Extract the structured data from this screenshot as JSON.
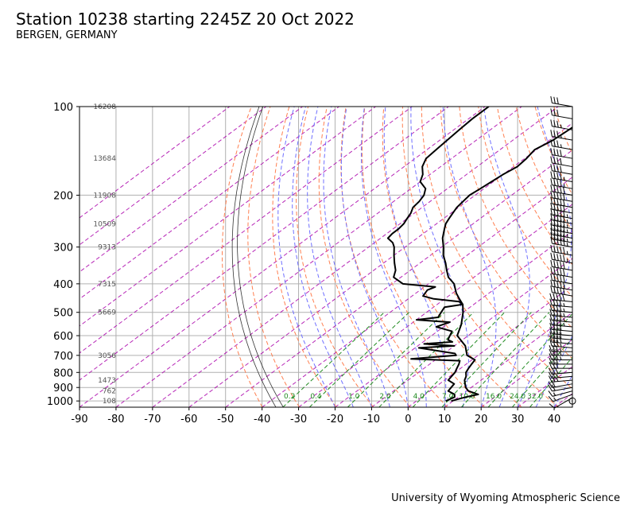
{
  "header": {
    "title": "Station 10238 starting 2245Z 20 Oct 2022",
    "subtitle": "BERGEN, GERMANY"
  },
  "footer": {
    "credit": "University of Wyoming Atmospheric Science"
  },
  "colors": {
    "dry_adiabats": "#ff7f50",
    "moist_adiabats": "#6f6fff",
    "mixing_ratio": "#228b22",
    "isotherms": "#aa00aa",
    "profile": "#000000",
    "grid": "#b0b0b0",
    "height_labels": "#555555"
  },
  "chart_data": {
    "type": "line",
    "chart_kind": "skew-T log-p diagram",
    "xlabel": "",
    "ylabel": "",
    "xlim": [
      -90,
      45
    ],
    "ylim": [
      1050,
      100
    ],
    "yscale": "log",
    "grid": true,
    "x_ticks": [
      -90,
      -80,
      -70,
      -60,
      -50,
      -40,
      -30,
      -20,
      -10,
      0,
      10,
      20,
      30,
      40
    ],
    "y_ticks": [
      100,
      200,
      300,
      400,
      500,
      600,
      700,
      800,
      900,
      1000
    ],
    "height_labels": [
      {
        "p": 100,
        "h": "16208"
      },
      {
        "p": 150,
        "h": "13684"
      },
      {
        "p": 200,
        "h": "11908"
      },
      {
        "p": 250,
        "h": "10509"
      },
      {
        "p": 300,
        "h": "9313"
      },
      {
        "p": 400,
        "h": "7315"
      },
      {
        "p": 500,
        "h": "5669"
      },
      {
        "p": 700,
        "h": "3056"
      },
      {
        "p": 850,
        "h": "1473"
      },
      {
        "p": 925,
        "h": "762"
      },
      {
        "p": 1000,
        "h": "108"
      }
    ],
    "mixing_ratio_labels": [
      "0.2",
      "0.4",
      "1.0",
      "2.0",
      "4.0",
      "7.0",
      "10.0",
      "16.0",
      "24.0",
      "32.0"
    ],
    "mixing_ratio_values": [
      0.2,
      0.4,
      1.0,
      2.0,
      4.0,
      7.0,
      10.0,
      16.0,
      24.0,
      32.0
    ],
    "series": [
      {
        "variable": "temperature",
        "p": [
          1000,
          970,
          950,
          925,
          900,
          875,
          850,
          825,
          800,
          775,
          750,
          725,
          700,
          650,
          600,
          550,
          500,
          470,
          450,
          430,
          400,
          380,
          360,
          340,
          320,
          300,
          280,
          260,
          250,
          240,
          230,
          220,
          210,
          200,
          190,
          180,
          170,
          160,
          150,
          140,
          130,
          120,
          110,
          100
        ],
        "t": [
          9.5,
          12.0,
          14.5,
          10.5,
          8.5,
          7.0,
          5.5,
          4.5,
          3.0,
          2.2,
          1.5,
          0.8,
          -3.0,
          -7.0,
          -13.0,
          -16.0,
          -20.0,
          -23.0,
          -26.0,
          -29.0,
          -33.0,
          -37.0,
          -40.0,
          -43.0,
          -46.5,
          -49.5,
          -53.0,
          -56.0,
          -57.5,
          -58.5,
          -59.5,
          -60.5,
          -61.0,
          -61.5,
          -61.0,
          -60.5,
          -60.0,
          -59.0,
          -59.5,
          -60.5,
          -59.0,
          -58.5,
          -58.0,
          -58.0
        ]
      },
      {
        "variable": "dewpoint",
        "p": [
          1000,
          970,
          950,
          925,
          900,
          875,
          850,
          825,
          800,
          775,
          750,
          730,
          720,
          700,
          690,
          660,
          650,
          640,
          630,
          620,
          600,
          580,
          560,
          540,
          530,
          520,
          500,
          480,
          470,
          460,
          450,
          440,
          420,
          410,
          400,
          380,
          360,
          340,
          320,
          300,
          290,
          280,
          270,
          260,
          250,
          240,
          230,
          220,
          210,
          200,
          190,
          180,
          170,
          160,
          150,
          140,
          130,
          120,
          110,
          100
        ],
        "t": [
          8.0,
          9.0,
          8.0,
          5.0,
          4.5,
          4.0,
          1.0,
          0.5,
          0.0,
          -1.0,
          -2.0,
          -3.0,
          -17.0,
          -6.0,
          -7.0,
          -19.0,
          -10.0,
          -19.0,
          -12.0,
          -14.0,
          -15.0,
          -16.0,
          -22.0,
          -20.0,
          -30.0,
          -25.0,
          -26.0,
          -27.0,
          -23.0,
          -25.0,
          -33.0,
          -37.0,
          -38.0,
          -37.0,
          -47.0,
          -52.0,
          -54.0,
          -57.0,
          -60.0,
          -63.0,
          -65.0,
          -68.0,
          -68.5,
          -68.5,
          -69.0,
          -70.0,
          -71.0,
          -72.5,
          -73.0,
          -74.0,
          -76.0,
          -80.0,
          -82.0,
          -85.0,
          -87.0,
          -87.5,
          -88.0,
          -88.5,
          -89.0,
          -89.0
        ]
      }
    ],
    "wind_barbs": {
      "p": [
        1000,
        975,
        950,
        925,
        900,
        875,
        850,
        825,
        800,
        775,
        750,
        725,
        700,
        680,
        660,
        640,
        620,
        600,
        580,
        560,
        540,
        520,
        500,
        480,
        460,
        440,
        420,
        400,
        380,
        360,
        340,
        320,
        300,
        290,
        280,
        270,
        260,
        250,
        240,
        230,
        220,
        210,
        200,
        190,
        180,
        170,
        160,
        150,
        140,
        130,
        120,
        110,
        100
      ],
      "speed_kt": [
        0,
        10,
        15,
        15,
        20,
        20,
        25,
        25,
        30,
        30,
        30,
        35,
        35,
        35,
        35,
        40,
        40,
        40,
        40,
        45,
        45,
        45,
        45,
        45,
        50,
        50,
        50,
        50,
        50,
        50,
        55,
        55,
        55,
        55,
        55,
        55,
        55,
        55,
        55,
        50,
        50,
        50,
        50,
        45,
        45,
        40,
        40,
        40,
        35,
        35,
        35,
        30,
        30
      ],
      "direction_deg": [
        0,
        240,
        250,
        255,
        260,
        260,
        265,
        265,
        265,
        270,
        270,
        270,
        270,
        270,
        275,
        275,
        275,
        275,
        275,
        275,
        275,
        275,
        275,
        275,
        275,
        280,
        280,
        280,
        280,
        280,
        280,
        280,
        280,
        280,
        280,
        280,
        280,
        280,
        280,
        280,
        280,
        280,
        280,
        280,
        280,
        280,
        280,
        280,
        280,
        280,
        280,
        280,
        280
      ]
    }
  }
}
